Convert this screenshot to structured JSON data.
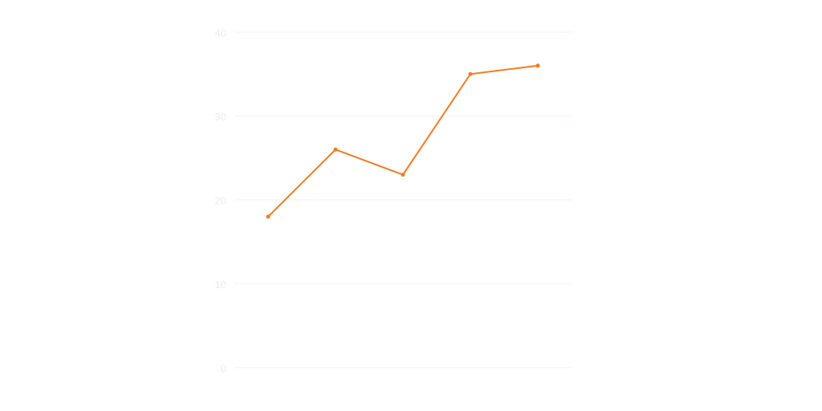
{
  "chart_data": {
    "type": "line",
    "categories": [
      null,
      null,
      null,
      null,
      null
    ],
    "series": [
      {
        "color": "#f47b20",
        "values": [
          18,
          26,
          23,
          35,
          36
        ]
      }
    ],
    "ylim": [
      0,
      40
    ],
    "yticks": [
      0,
      10,
      20,
      30,
      40
    ],
    "grid": true
  }
}
